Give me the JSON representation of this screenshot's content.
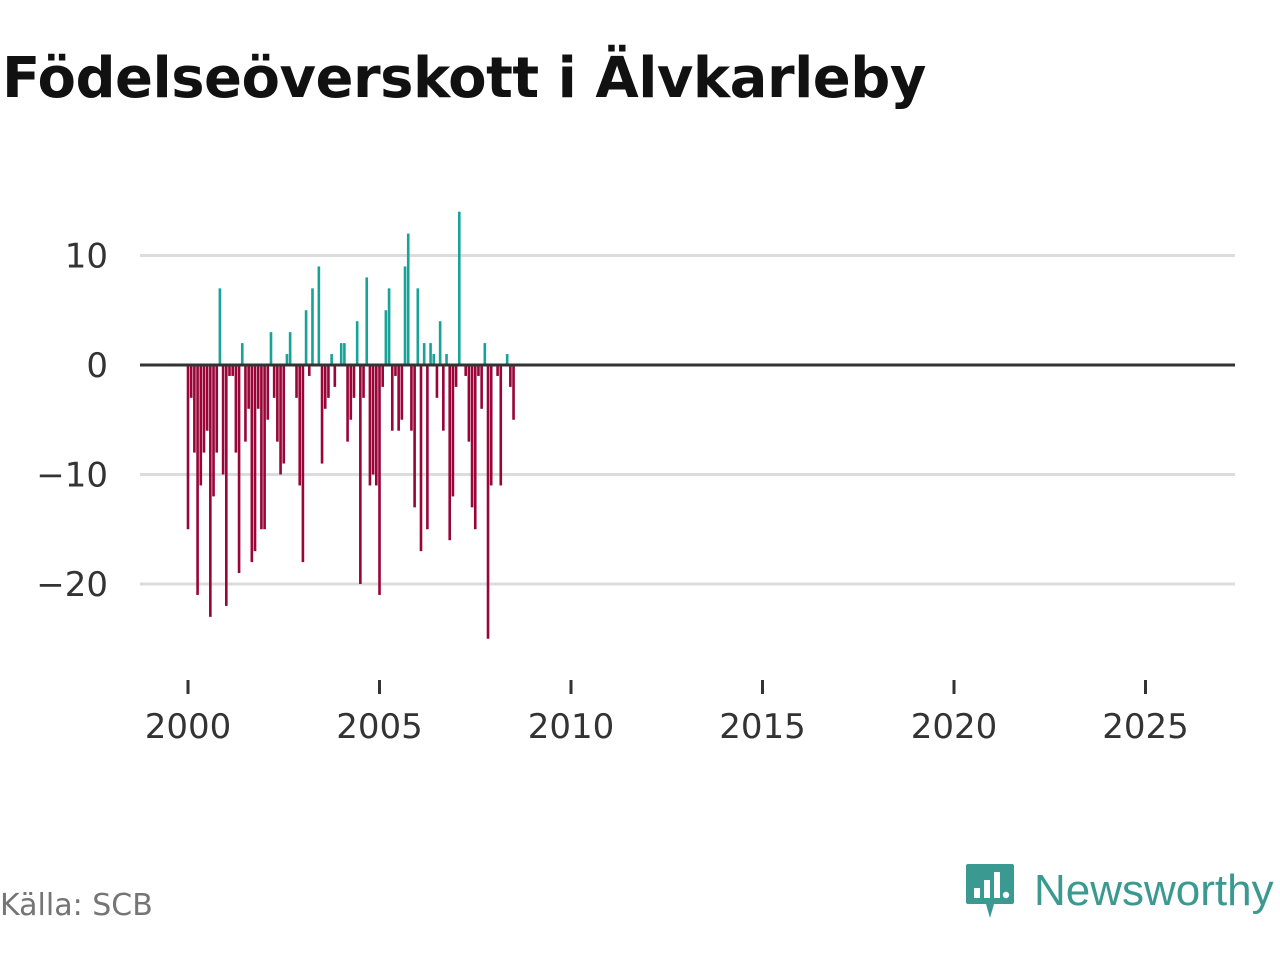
{
  "title": "Födelseöverskott i Älvkarleby",
  "source": "Källa: SCB",
  "brand": "Newsworthy",
  "colors": {
    "positive": "#17a398",
    "negative": "#9a0538"
  },
  "chart_data": {
    "type": "bar",
    "title": "Födelseöverskott i Älvkarleby",
    "xlabel": "",
    "ylabel": "",
    "ylim": [
      -27,
      15
    ],
    "xlim": [
      1999.25,
      2027.25
    ],
    "yticks": [
      10,
      0,
      -10,
      -20
    ],
    "ytick_labels": [
      "10",
      "0",
      "−10",
      "−20"
    ],
    "xticks": [
      2000,
      2005,
      2010,
      2015,
      2020,
      2025
    ],
    "xtick_labels": [
      "2000",
      "2005",
      "2010",
      "2015",
      "2020",
      "2025"
    ],
    "period": "month",
    "start": [
      2000,
      1
    ],
    "values": [
      -15,
      -3,
      -8,
      -21,
      -11,
      -8,
      -6,
      -23,
      -12,
      -8,
      7,
      -10,
      -22,
      -1,
      -1,
      -8,
      -19,
      2,
      -7,
      -4,
      -18,
      -17,
      -4,
      -15,
      -15,
      -5,
      3,
      -3,
      -7,
      -10,
      -9,
      1,
      3,
      0,
      -3,
      -11,
      -18,
      5,
      -1,
      7,
      0,
      9,
      -9,
      -4,
      -3,
      1,
      -2,
      0,
      2,
      2,
      -7,
      -5,
      -3,
      4,
      -20,
      -3,
      8,
      -11,
      -10,
      -11,
      -21,
      -2,
      5,
      7,
      -6,
      -1,
      -6,
      -5,
      9,
      12,
      -6,
      -13,
      7,
      -17,
      2,
      -15,
      2,
      1,
      -3,
      4,
      -6,
      1,
      -16,
      -12,
      -2,
      14,
      0,
      -1,
      -7,
      -13,
      -15,
      -1,
      -4,
      2,
      -25,
      -11,
      0,
      -1,
      -11,
      0,
      1,
      -2,
      -5
    ]
  }
}
